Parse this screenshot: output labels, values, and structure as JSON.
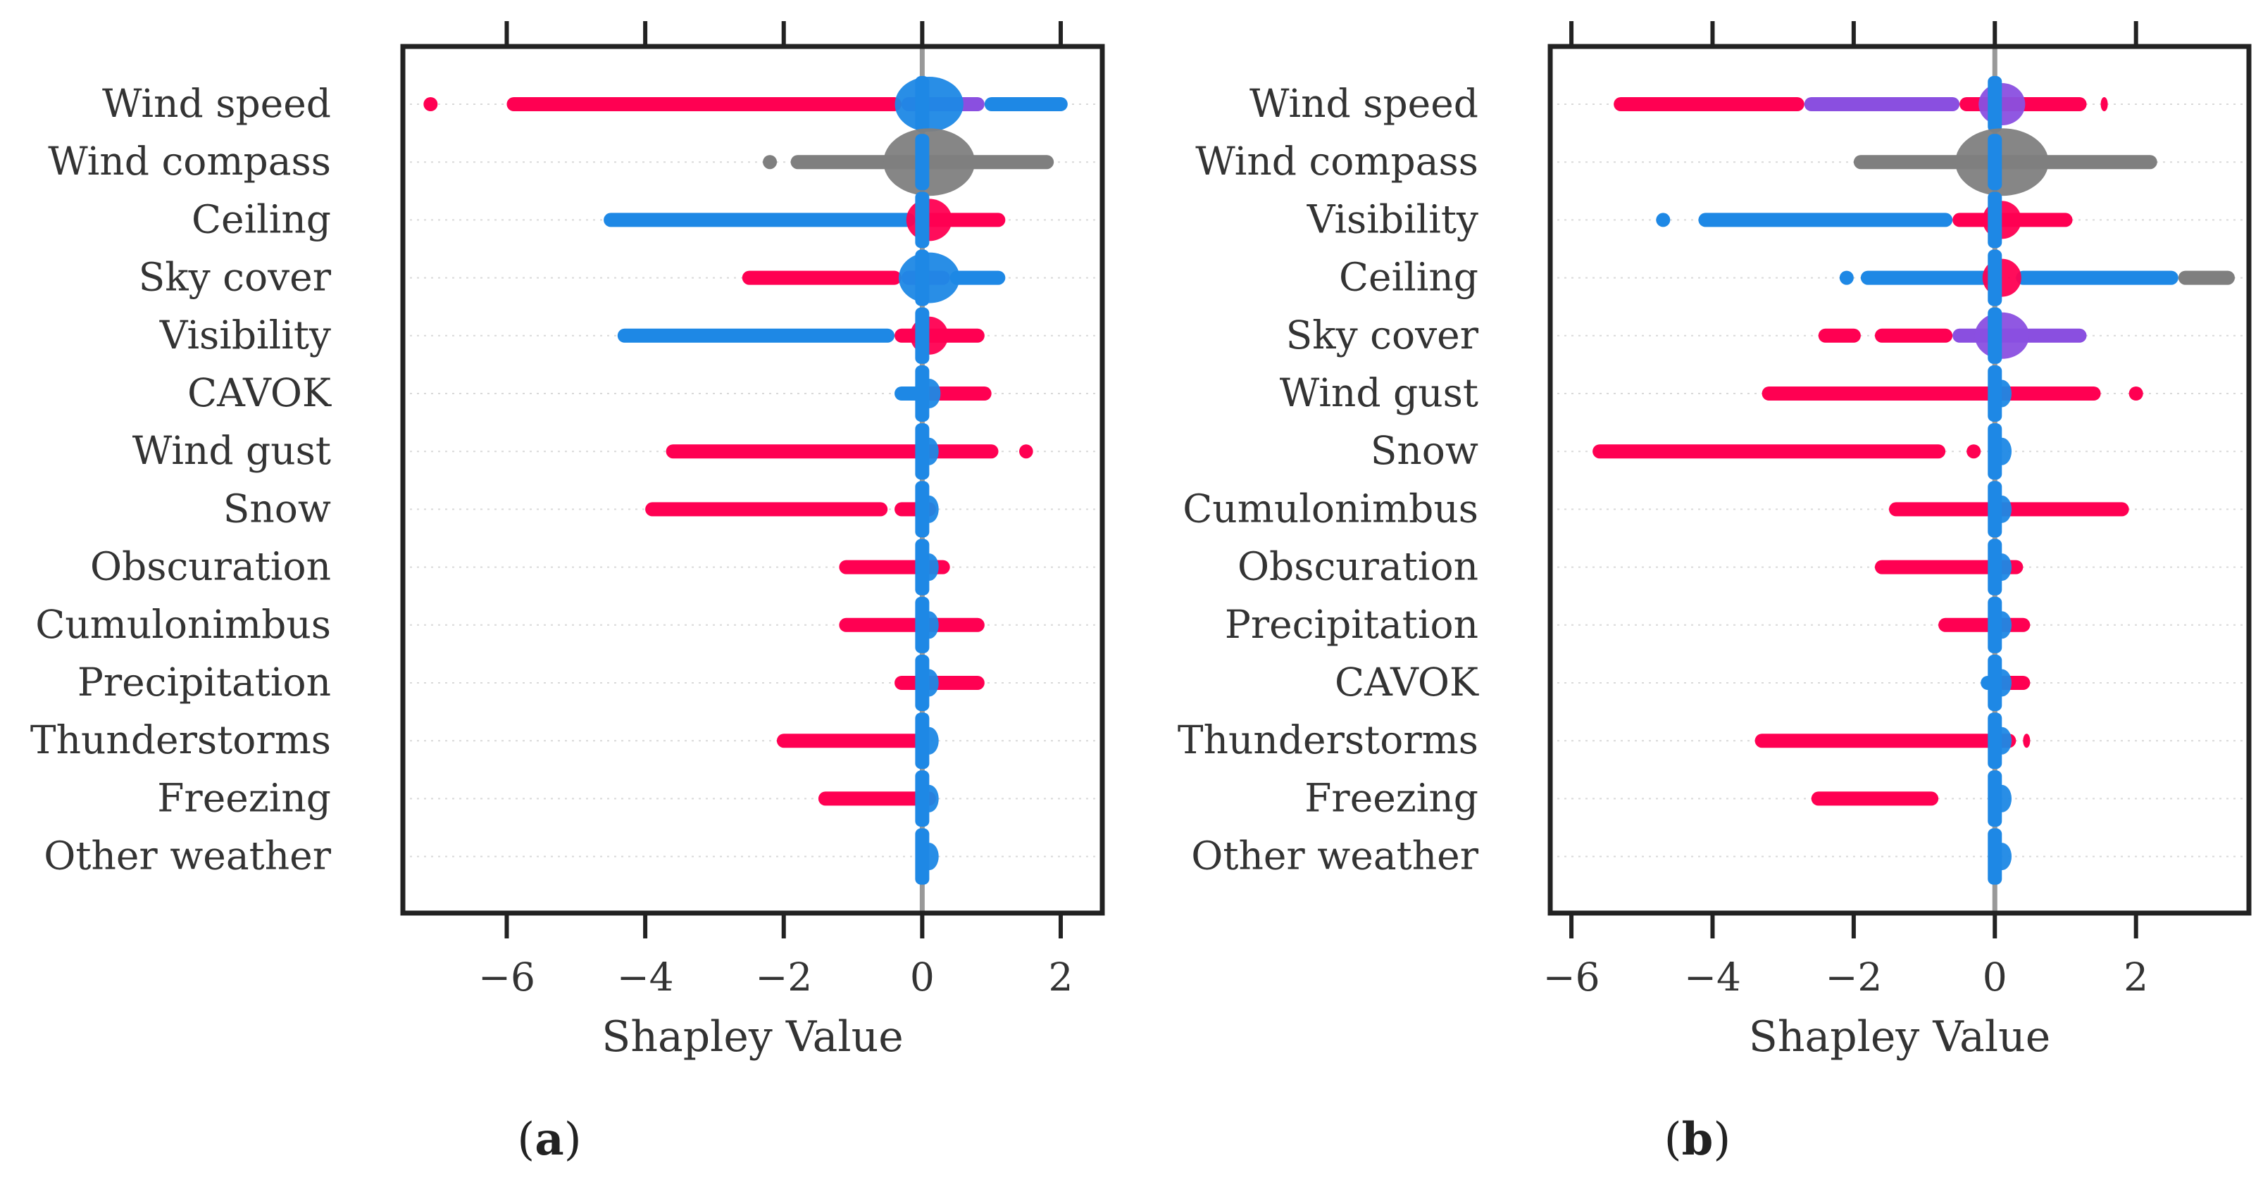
{
  "chart_data": [
    {
      "type": "scatter",
      "subtype": "shap-beeswarm",
      "panel_label": "a",
      "xlabel": "Shapley Value",
      "xlim": [
        -7.5,
        2.6
      ],
      "xticks": [
        -6,
        -4,
        -2,
        0,
        2
      ],
      "xtick_labels": [
        "−6",
        "−4",
        "−2",
        "0",
        "2"
      ],
      "features": [
        {
          "name": "Wind speed",
          "min": -7.1,
          "max": 2.1,
          "outlier_lows": [
            -7.1
          ],
          "segments": [
            {
              "from": -6.0,
              "to": -0.3,
              "color": "#ff0052"
            },
            {
              "from": -0.3,
              "to": 0.9,
              "color": "#8a4fe0"
            },
            {
              "from": 0.9,
              "to": 2.1,
              "color": "#1e88e5"
            }
          ],
          "density_width": 0.9,
          "density_color": "#1e88e5"
        },
        {
          "name": "Wind compass",
          "min": -2.2,
          "max": 1.9,
          "outlier_lows": [
            -2.2
          ],
          "segments": [
            {
              "from": -1.9,
              "to": 1.9,
              "color": "#7f7f7f"
            }
          ],
          "density_width": 1.2,
          "density_color": "#7f7f7f"
        },
        {
          "name": "Ceiling",
          "min": -4.6,
          "max": 1.2,
          "outlier_lows": [],
          "segments": [
            {
              "from": -4.6,
              "to": -0.1,
              "color": "#1e88e5"
            },
            {
              "from": -0.1,
              "to": 1.2,
              "color": "#ff0052"
            }
          ],
          "density_width": 0.6,
          "density_color": "#ff0052"
        },
        {
          "name": "Sky cover",
          "min": -2.6,
          "max": 1.2,
          "outlier_lows": [],
          "segments": [
            {
              "from": -2.6,
              "to": -0.3,
              "color": "#ff0052"
            },
            {
              "from": -0.3,
              "to": 0.4,
              "color": "#8a4fe0"
            },
            {
              "from": 0.4,
              "to": 1.2,
              "color": "#1e88e5"
            }
          ],
          "density_width": 0.8,
          "density_color": "#1e88e5"
        },
        {
          "name": "Visibility",
          "min": -4.4,
          "max": 0.9,
          "outlier_lows": [],
          "segments": [
            {
              "from": -4.4,
              "to": -0.4,
              "color": "#1e88e5"
            },
            {
              "from": -0.4,
              "to": 0.9,
              "color": "#ff0052"
            }
          ],
          "density_width": 0.5,
          "density_color": "#ff0052"
        },
        {
          "name": "CAVOK",
          "min": -0.4,
          "max": 1.0,
          "outlier_lows": [],
          "segments": [
            {
              "from": -0.4,
              "to": 0.0,
              "color": "#1e88e5"
            },
            {
              "from": 0.0,
              "to": 1.0,
              "color": "#ff0052"
            }
          ],
          "density_width": 0.3,
          "density_color": "#1e88e5"
        },
        {
          "name": "Wind gust",
          "min": -3.7,
          "max": 1.6,
          "outlier_lows": [],
          "segments": [
            {
              "from": -3.7,
              "to": 0.0,
              "color": "#ff0052"
            },
            {
              "from": 0.0,
              "to": 1.1,
              "color": "#ff0052"
            },
            {
              "from": 1.4,
              "to": 1.6,
              "color": "#ff0052"
            }
          ],
          "density_width": 0.25,
          "density_color": "#1e88e5"
        },
        {
          "name": "Snow",
          "min": -4.0,
          "max": 0.2,
          "outlier_lows": [],
          "segments": [
            {
              "from": -4.0,
              "to": -0.5,
              "color": "#ff0052"
            },
            {
              "from": -0.4,
              "to": 0.2,
              "color": "#ff0052"
            }
          ],
          "density_width": 0.25,
          "density_color": "#1e88e5"
        },
        {
          "name": "Obscuration",
          "min": -1.2,
          "max": 0.4,
          "outlier_lows": [],
          "segments": [
            {
              "from": -1.2,
              "to": 0.4,
              "color": "#ff0052"
            }
          ],
          "density_width": 0.25,
          "density_color": "#1e88e5"
        },
        {
          "name": "Cumulonimbus",
          "min": -1.2,
          "max": 0.9,
          "outlier_lows": [],
          "segments": [
            {
              "from": -1.2,
              "to": 0.9,
              "color": "#ff0052"
            }
          ],
          "density_width": 0.25,
          "density_color": "#1e88e5"
        },
        {
          "name": "Precipitation",
          "min": -0.4,
          "max": 0.9,
          "outlier_lows": [],
          "segments": [
            {
              "from": -0.4,
              "to": 0.9,
              "color": "#ff0052"
            }
          ],
          "density_width": 0.25,
          "density_color": "#1e88e5"
        },
        {
          "name": "Thunderstorms",
          "min": -2.1,
          "max": 0.0,
          "outlier_lows": [],
          "segments": [
            {
              "from": -2.1,
              "to": 0.0,
              "color": "#ff0052"
            }
          ],
          "density_width": 0.25,
          "density_color": "#1e88e5"
        },
        {
          "name": "Freezing",
          "min": -1.5,
          "max": 0.2,
          "outlier_lows": [],
          "segments": [
            {
              "from": -1.5,
              "to": 0.2,
              "color": "#ff0052"
            }
          ],
          "density_width": 0.25,
          "density_color": "#1e88e5"
        },
        {
          "name": "Other weather",
          "min": 0.0,
          "max": 0.0,
          "outlier_lows": [],
          "segments": [],
          "density_width": 0.25,
          "density_color": "#1e88e5"
        }
      ]
    },
    {
      "type": "scatter",
      "subtype": "shap-beeswarm",
      "panel_label": "b",
      "xlabel": "Shapley Value",
      "xlim": [
        -6.3,
        3.6
      ],
      "xticks": [
        -6,
        -4,
        -2,
        0,
        2
      ],
      "xtick_labels": [
        "−6",
        "−4",
        "−2",
        "0",
        "2"
      ],
      "features": [
        {
          "name": "Wind speed",
          "min": -5.4,
          "max": 1.6,
          "outlier_lows": [],
          "segments": [
            {
              "from": -5.4,
              "to": -2.7,
              "color": "#ff0052"
            },
            {
              "from": -2.7,
              "to": -0.5,
              "color": "#8a4fe0"
            },
            {
              "from": -0.5,
              "to": 1.3,
              "color": "#ff0052"
            },
            {
              "from": 1.5,
              "to": 1.6,
              "color": "#ff0052"
            }
          ],
          "density_width": 0.6,
          "density_color": "#8a4fe0"
        },
        {
          "name": "Wind compass",
          "min": -2.0,
          "max": 2.3,
          "outlier_lows": [],
          "segments": [
            {
              "from": -2.0,
              "to": 2.3,
              "color": "#7f7f7f"
            }
          ],
          "density_width": 1.2,
          "density_color": "#7f7f7f"
        },
        {
          "name": "Visibility",
          "min": -4.7,
          "max": 1.1,
          "outlier_lows": [
            -4.7
          ],
          "segments": [
            {
              "from": -4.2,
              "to": -0.6,
              "color": "#1e88e5"
            },
            {
              "from": -0.6,
              "to": 1.1,
              "color": "#ff0052"
            }
          ],
          "density_width": 0.5,
          "density_color": "#ff0052"
        },
        {
          "name": "Ceiling",
          "min": -2.1,
          "max": 3.4,
          "outlier_lows": [
            -2.1
          ],
          "segments": [
            {
              "from": -1.9,
              "to": 0.0,
              "color": "#1e88e5"
            },
            {
              "from": 0.3,
              "to": 2.6,
              "color": "#1e88e5"
            },
            {
              "from": 2.6,
              "to": 3.4,
              "color": "#7f7f7f"
            }
          ],
          "density_width": 0.5,
          "density_color": "#ff0052"
        },
        {
          "name": "Sky cover",
          "min": -2.5,
          "max": 1.3,
          "outlier_lows": [],
          "segments": [
            {
              "from": -2.5,
              "to": -1.9,
              "color": "#ff0052"
            },
            {
              "from": -1.7,
              "to": -0.6,
              "color": "#ff0052"
            },
            {
              "from": -0.6,
              "to": 1.3,
              "color": "#8a4fe0"
            }
          ],
          "density_width": 0.7,
          "density_color": "#8a4fe0"
        },
        {
          "name": "Wind gust",
          "min": -3.3,
          "max": 2.1,
          "outlier_lows": [],
          "segments": [
            {
              "from": -3.3,
              "to": 0.0,
              "color": "#ff0052"
            },
            {
              "from": 0.0,
              "to": 1.5,
              "color": "#ff0052"
            },
            {
              "from": 1.9,
              "to": 2.1,
              "color": "#ff0052"
            }
          ],
          "density_width": 0.25,
          "density_color": "#1e88e5"
        },
        {
          "name": "Snow",
          "min": -5.7,
          "max": 0.1,
          "outlier_lows": [],
          "segments": [
            {
              "from": -5.7,
              "to": -0.7,
              "color": "#ff0052"
            },
            {
              "from": -0.4,
              "to": -0.2,
              "color": "#ff0052"
            }
          ],
          "density_width": 0.25,
          "density_color": "#1e88e5"
        },
        {
          "name": "Cumulonimbus",
          "min": -1.5,
          "max": 1.9,
          "outlier_lows": [],
          "segments": [
            {
              "from": -1.5,
              "to": 1.9,
              "color": "#ff0052"
            }
          ],
          "density_width": 0.25,
          "density_color": "#1e88e5"
        },
        {
          "name": "Obscuration",
          "min": -1.7,
          "max": 0.4,
          "outlier_lows": [],
          "segments": [
            {
              "from": -1.7,
              "to": 0.4,
              "color": "#ff0052"
            }
          ],
          "density_width": 0.25,
          "density_color": "#1e88e5"
        },
        {
          "name": "Precipitation",
          "min": -0.8,
          "max": 0.5,
          "outlier_lows": [],
          "segments": [
            {
              "from": -0.8,
              "to": 0.5,
              "color": "#ff0052"
            }
          ],
          "density_width": 0.25,
          "density_color": "#1e88e5"
        },
        {
          "name": "CAVOK",
          "min": -0.2,
          "max": 0.5,
          "outlier_lows": [],
          "segments": [
            {
              "from": -0.2,
              "to": 0.0,
              "color": "#1e88e5"
            },
            {
              "from": 0.0,
              "to": 0.5,
              "color": "#ff0052"
            }
          ],
          "density_width": 0.25,
          "density_color": "#1e88e5"
        },
        {
          "name": "Thunderstorms",
          "min": -3.4,
          "max": 0.5,
          "outlier_lows": [],
          "segments": [
            {
              "from": -3.4,
              "to": 0.3,
              "color": "#ff0052"
            },
            {
              "from": 0.4,
              "to": 0.5,
              "color": "#ff0052"
            }
          ],
          "density_width": 0.25,
          "density_color": "#1e88e5"
        },
        {
          "name": "Freezing",
          "min": -2.6,
          "max": 0.1,
          "outlier_lows": [],
          "segments": [
            {
              "from": -2.6,
              "to": -0.8,
              "color": "#ff0052"
            }
          ],
          "density_width": 0.25,
          "density_color": "#1e88e5"
        },
        {
          "name": "Other weather",
          "min": 0.0,
          "max": 0.0,
          "outlier_lows": [],
          "segments": [],
          "density_width": 0.25,
          "density_color": "#1e88e5"
        }
      ]
    }
  ],
  "captions": [
    {
      "open": "(",
      "letter": "a",
      "close": ")"
    },
    {
      "open": "(",
      "letter": "b",
      "close": ")"
    }
  ],
  "colors": {
    "high": "#ff0052",
    "low": "#1e88e5",
    "mid": "#8a4fe0",
    "categorical": "#7f7f7f",
    "zero_line": "#999999",
    "frame": "#222222",
    "grid": "#d9d9d9"
  }
}
